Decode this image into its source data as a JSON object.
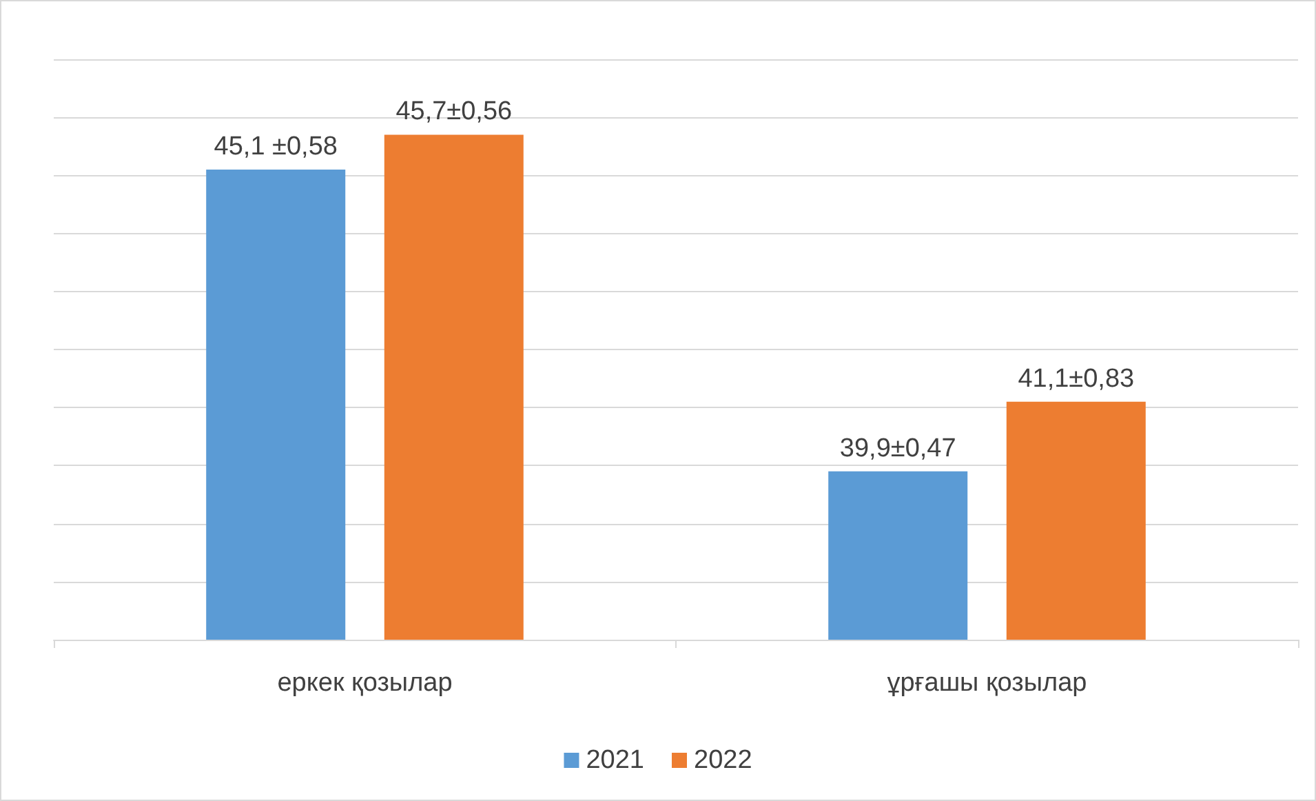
{
  "chart_data": {
    "type": "bar",
    "categories": [
      "еркек қозылар",
      "ұрғашы қозылар"
    ],
    "series": [
      {
        "name": "2021",
        "color": "#5b9bd5",
        "values": [
          45.1,
          39.9
        ],
        "value_labels": [
          "45,1 ±0,58",
          "39,9±0,47"
        ]
      },
      {
        "name": "2022",
        "color": "#ed7d31",
        "values": [
          45.7,
          41.1
        ],
        "value_labels": [
          "45,7±0,56",
          "41,1±0,83"
        ]
      }
    ],
    "ylim": [
      37,
      47
    ],
    "yticks": [
      {
        "value": 37,
        "label": null
      },
      {
        "value": 38,
        "label": null
      },
      {
        "value": 39,
        "label": null
      },
      {
        "value": 40,
        "label": null
      },
      {
        "value": 41,
        "label": null
      },
      {
        "value": 42,
        "label": null
      },
      {
        "value": 43,
        "label": null
      },
      {
        "value": 44,
        "label": null
      },
      {
        "value": 45,
        "label": null
      },
      {
        "value": 46,
        "label": null
      },
      {
        "value": 47,
        "label": null
      }
    ],
    "grid": "y",
    "legend": "bottom",
    "tick_labels": "x"
  }
}
